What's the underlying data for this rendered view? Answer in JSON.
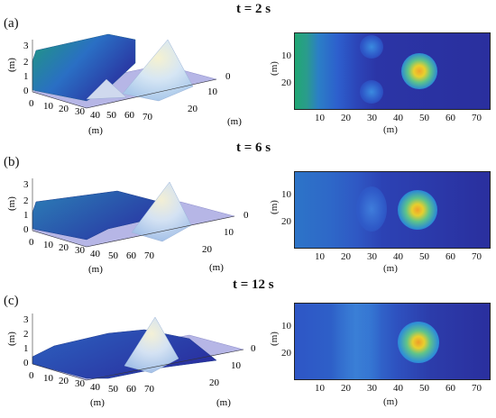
{
  "figure": {
    "rows": [
      {
        "panel_label": "(a)",
        "time_label": "t = 2 s",
        "surface": {
          "z_axis_label": "(m)",
          "z_ticks": [
            "3",
            "2",
            "1",
            "0"
          ],
          "x_axis_label": "(m)",
          "x_ticks": [
            "0",
            "10",
            "20",
            "30",
            "40",
            "50",
            "60",
            "70"
          ],
          "y_axis_label": "(m)",
          "y_ticks": [
            "0",
            "10",
            "20"
          ]
        },
        "heatmap": {
          "x_axis_label": "(m)",
          "y_axis_label": "(m)",
          "x_ticks": [
            "10",
            "20",
            "30",
            "40",
            "50",
            "60",
            "70"
          ],
          "y_ticks": [
            "10",
            "20"
          ]
        }
      },
      {
        "panel_label": "(b)",
        "time_label": "t = 6 s",
        "surface": {
          "z_axis_label": "(m)",
          "z_ticks": [
            "3",
            "2",
            "1",
            "0"
          ],
          "x_axis_label": "(m)",
          "x_ticks": [
            "0",
            "10",
            "20",
            "30",
            "40",
            "50",
            "60",
            "70"
          ],
          "y_axis_label": "(m)",
          "y_ticks": [
            "0",
            "10",
            "20"
          ]
        },
        "heatmap": {
          "x_axis_label": "(m)",
          "y_axis_label": "(m)",
          "x_ticks": [
            "10",
            "20",
            "30",
            "40",
            "50",
            "60",
            "70"
          ],
          "y_ticks": [
            "10",
            "20"
          ]
        }
      },
      {
        "panel_label": "(c)",
        "time_label": "t = 12 s",
        "surface": {
          "z_axis_label": "(m)",
          "z_ticks": [
            "3",
            "2",
            "1",
            "0"
          ],
          "x_axis_label": "(m)",
          "x_ticks": [
            "0",
            "10",
            "20",
            "30",
            "40",
            "50",
            "60",
            "70"
          ],
          "y_axis_label": "(m)",
          "y_ticks": [
            "0",
            "10",
            "20"
          ]
        },
        "heatmap": {
          "x_axis_label": "(m)",
          "y_axis_label": "(m)",
          "x_ticks": [
            "10",
            "20",
            "30",
            "40",
            "50",
            "60",
            "70"
          ],
          "y_ticks": [
            "10",
            "20"
          ]
        }
      }
    ],
    "colors": {
      "dark_blue": "#2a2f9e",
      "mid_blue": "#2f6fd0",
      "cyan": "#25a9c8",
      "green": "#22a776",
      "yellow": "#f2d22c",
      "orange": "#f29d28",
      "floor": "#b6b6e6"
    }
  }
}
